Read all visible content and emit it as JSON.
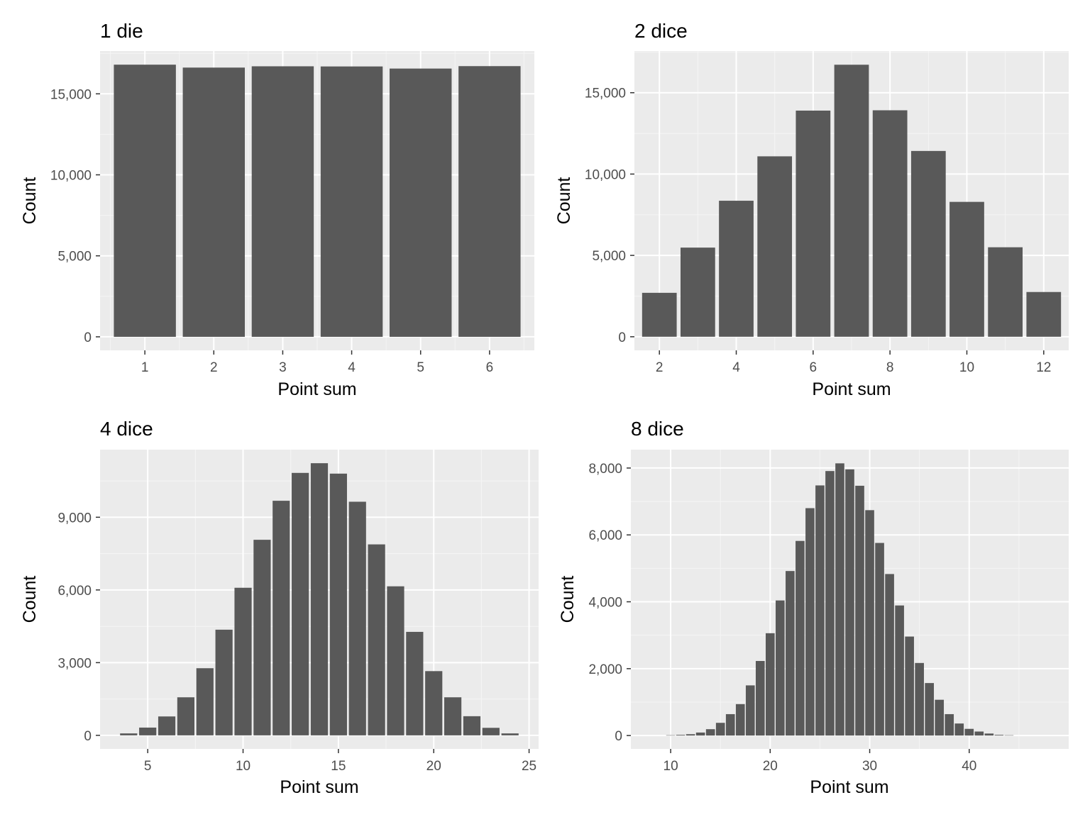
{
  "colors": {
    "panel_background": "#ebebeb",
    "grid_major": "#ffffff",
    "grid_minor": "#f5f5f5",
    "bar_fill": "#595959",
    "tick_mark": "#333333",
    "tick_label": "#4d4d4d",
    "text": "#000000"
  },
  "chart_data": [
    {
      "type": "bar",
      "title": "1 die",
      "xlabel": "Point sum",
      "ylabel": "Count",
      "x": [
        1,
        2,
        3,
        4,
        5,
        6
      ],
      "values": [
        16800,
        16620,
        16700,
        16690,
        16560,
        16710
      ],
      "xlim": [
        0.35,
        6.65
      ],
      "ylim": [
        -835,
        17640
      ],
      "x_ticks": [
        1,
        2,
        3,
        4,
        5,
        6
      ],
      "x_tick_labels": [
        "1",
        "2",
        "3",
        "4",
        "5",
        "6"
      ],
      "y_ticks": [
        0,
        5000,
        10000,
        15000
      ],
      "y_tick_labels": [
        "0",
        "5,000",
        "10,000",
        "15,000"
      ],
      "grid": true
    },
    {
      "type": "bar",
      "title": "2 dice",
      "xlabel": "Point sum",
      "ylabel": "Count",
      "x": [
        2,
        3,
        4,
        5,
        6,
        7,
        8,
        9,
        10,
        11,
        12
      ],
      "values": [
        2700,
        5480,
        8360,
        11090,
        13900,
        16720,
        13920,
        11420,
        8290,
        5500,
        2750
      ],
      "xlim": [
        1.35,
        12.65
      ],
      "ylim": [
        -836,
        17560
      ],
      "x_ticks": [
        2,
        4,
        6,
        8,
        10,
        12
      ],
      "x_tick_labels": [
        "2",
        "4",
        "6",
        "8",
        "10",
        "12"
      ],
      "y_ticks": [
        0,
        5000,
        10000,
        15000
      ],
      "y_tick_labels": [
        "0",
        "5,000",
        "10,000",
        "15,000"
      ],
      "grid": true
    },
    {
      "type": "bar",
      "title": "4 dice",
      "xlabel": "Point sum",
      "ylabel": "Count",
      "x": [
        4,
        5,
        6,
        7,
        8,
        9,
        10,
        11,
        12,
        13,
        14,
        15,
        16,
        17,
        18,
        19,
        20,
        21,
        22,
        23,
        24
      ],
      "values": [
        80,
        320,
        780,
        1570,
        2770,
        4360,
        6090,
        8070,
        9680,
        10830,
        11230,
        10800,
        9640,
        7880,
        6150,
        4270,
        2650,
        1570,
        790,
        310,
        80
      ],
      "xlim": [
        2.5,
        25.5
      ],
      "ylim": [
        -560,
        11790
      ],
      "x_ticks": [
        5,
        10,
        15,
        20,
        25
      ],
      "x_tick_labels": [
        "5",
        "10",
        "15",
        "20",
        "25"
      ],
      "y_ticks": [
        0,
        3000,
        6000,
        9000
      ],
      "y_tick_labels": [
        "0",
        "3,000",
        "6,000",
        "9,000"
      ],
      "grid": true
    },
    {
      "type": "bar",
      "title": "8 dice",
      "xlabel": "Point sum",
      "ylabel": "Count",
      "x": [
        8,
        9,
        10,
        11,
        12,
        13,
        14,
        15,
        16,
        17,
        18,
        19,
        20,
        21,
        22,
        23,
        24,
        25,
        26,
        27,
        28,
        29,
        30,
        31,
        32,
        33,
        34,
        35,
        36,
        37,
        38,
        39,
        40,
        41,
        42,
        43,
        44,
        45,
        46,
        47,
        48
      ],
      "values": [
        0,
        0,
        10,
        20,
        40,
        90,
        190,
        380,
        640,
        940,
        1500,
        2230,
        3060,
        4040,
        4920,
        5820,
        6800,
        7480,
        7910,
        8140,
        7960,
        7470,
        6740,
        5760,
        4830,
        3890,
        2960,
        2170,
        1570,
        1070,
        640,
        360,
        200,
        120,
        60,
        20,
        10,
        0,
        0,
        0,
        0
      ],
      "xlim": [
        6,
        50
      ],
      "ylim": [
        -400,
        8550
      ],
      "x_ticks": [
        10,
        20,
        30,
        40
      ],
      "x_tick_labels": [
        "10",
        "20",
        "30",
        "40"
      ],
      "y_ticks": [
        0,
        2000,
        4000,
        6000,
        8000
      ],
      "y_tick_labels": [
        "0",
        "2,000",
        "4,000",
        "6,000",
        "8,000"
      ],
      "grid": true
    }
  ]
}
